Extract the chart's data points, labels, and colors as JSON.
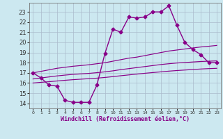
{
  "xlabel": "Windchill (Refroidissement éolien,°C)",
  "x_hours": [
    0,
    1,
    2,
    3,
    4,
    5,
    6,
    7,
    8,
    9,
    10,
    11,
    12,
    13,
    14,
    15,
    16,
    17,
    18,
    19,
    20,
    21,
    22,
    23
  ],
  "temp_curve": [
    17.0,
    16.5,
    15.8,
    15.7,
    14.3,
    14.1,
    14.1,
    14.1,
    15.8,
    18.9,
    21.3,
    21.0,
    22.5,
    22.4,
    22.5,
    23.0,
    23.0,
    23.6,
    21.7,
    20.0,
    19.3,
    18.8,
    18.0,
    18.0
  ],
  "trend_top": [
    17.0,
    17.15,
    17.3,
    17.45,
    17.55,
    17.65,
    17.72,
    17.8,
    17.9,
    18.0,
    18.15,
    18.3,
    18.45,
    18.55,
    18.7,
    18.85,
    19.0,
    19.15,
    19.25,
    19.35,
    19.45,
    19.55,
    19.62,
    19.7
  ],
  "trend_mid": [
    16.4,
    16.5,
    16.6,
    16.7,
    16.78,
    16.85,
    16.9,
    16.95,
    17.02,
    17.1,
    17.2,
    17.32,
    17.42,
    17.52,
    17.62,
    17.72,
    17.82,
    17.9,
    17.97,
    18.02,
    18.07,
    18.12,
    18.15,
    18.18
  ],
  "trend_bot": [
    16.0,
    16.07,
    16.13,
    16.2,
    16.27,
    16.33,
    16.38,
    16.43,
    16.48,
    16.55,
    16.63,
    16.72,
    16.8,
    16.88,
    16.96,
    17.03,
    17.1,
    17.17,
    17.23,
    17.28,
    17.33,
    17.38,
    17.42,
    17.45
  ],
  "line_color": "#880088",
  "bg_color": "#cce8f0",
  "grid_color": "#aabbcc",
  "ylim": [
    13.5,
    23.9
  ],
  "yticks": [
    14,
    15,
    16,
    17,
    18,
    19,
    20,
    21,
    22,
    23
  ],
  "marker": "D",
  "marker_size": 2.5,
  "linewidth": 1.0
}
